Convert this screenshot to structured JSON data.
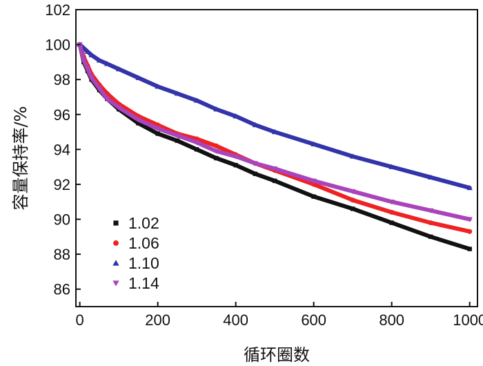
{
  "chart_data": {
    "type": "line",
    "title": "",
    "xlabel": "循环圈数",
    "ylabel": "容量保持率/%",
    "xlim": [
      -10,
      1020
    ],
    "ylim": [
      85,
      102
    ],
    "xticks": [
      0,
      200,
      400,
      600,
      800,
      1000
    ],
    "yticks": [
      86,
      88,
      90,
      92,
      94,
      96,
      98,
      100,
      102
    ],
    "xtick_labels": [
      "0",
      "200",
      "400",
      "600",
      "800",
      "1000"
    ],
    "ytick_labels": [
      "86",
      "88",
      "90",
      "92",
      "94",
      "96",
      "98",
      "100",
      "102"
    ],
    "grid": false,
    "legend_position": "bottom-left",
    "x": [
      0,
      10,
      20,
      30,
      50,
      70,
      100,
      150,
      200,
      250,
      300,
      350,
      400,
      450,
      500,
      600,
      700,
      800,
      900,
      1000
    ],
    "series": [
      {
        "name": "1.02",
        "color": "#111111",
        "marker": "square",
        "values": [
          100,
          99.0,
          98.5,
          98.0,
          97.4,
          96.9,
          96.3,
          95.5,
          94.9,
          94.5,
          94.0,
          93.5,
          93.1,
          92.6,
          92.2,
          91.3,
          90.6,
          89.8,
          89.0,
          88.3
        ]
      },
      {
        "name": "1.06",
        "color": "#ee2222",
        "marker": "circle",
        "values": [
          100,
          99.3,
          98.8,
          98.3,
          97.7,
          97.2,
          96.6,
          95.9,
          95.4,
          94.9,
          94.6,
          94.2,
          93.7,
          93.2,
          92.8,
          92.0,
          91.1,
          90.4,
          89.8,
          89.3
        ]
      },
      {
        "name": "1.10",
        "color": "#3333aa",
        "marker": "triangle",
        "values": [
          100,
          99.8,
          99.6,
          99.4,
          99.1,
          98.9,
          98.6,
          98.1,
          97.6,
          97.2,
          96.8,
          96.3,
          95.9,
          95.4,
          95.0,
          94.3,
          93.6,
          93.0,
          92.4,
          91.8
        ]
      },
      {
        "name": "1.14",
        "color": "#aa44bb",
        "marker": "down-triangle",
        "values": [
          100,
          99.1,
          98.6,
          98.1,
          97.5,
          96.9,
          96.4,
          95.7,
          95.2,
          94.8,
          94.4,
          93.9,
          93.6,
          93.2,
          92.9,
          92.2,
          91.6,
          91.0,
          90.5,
          90.0
        ]
      }
    ]
  }
}
